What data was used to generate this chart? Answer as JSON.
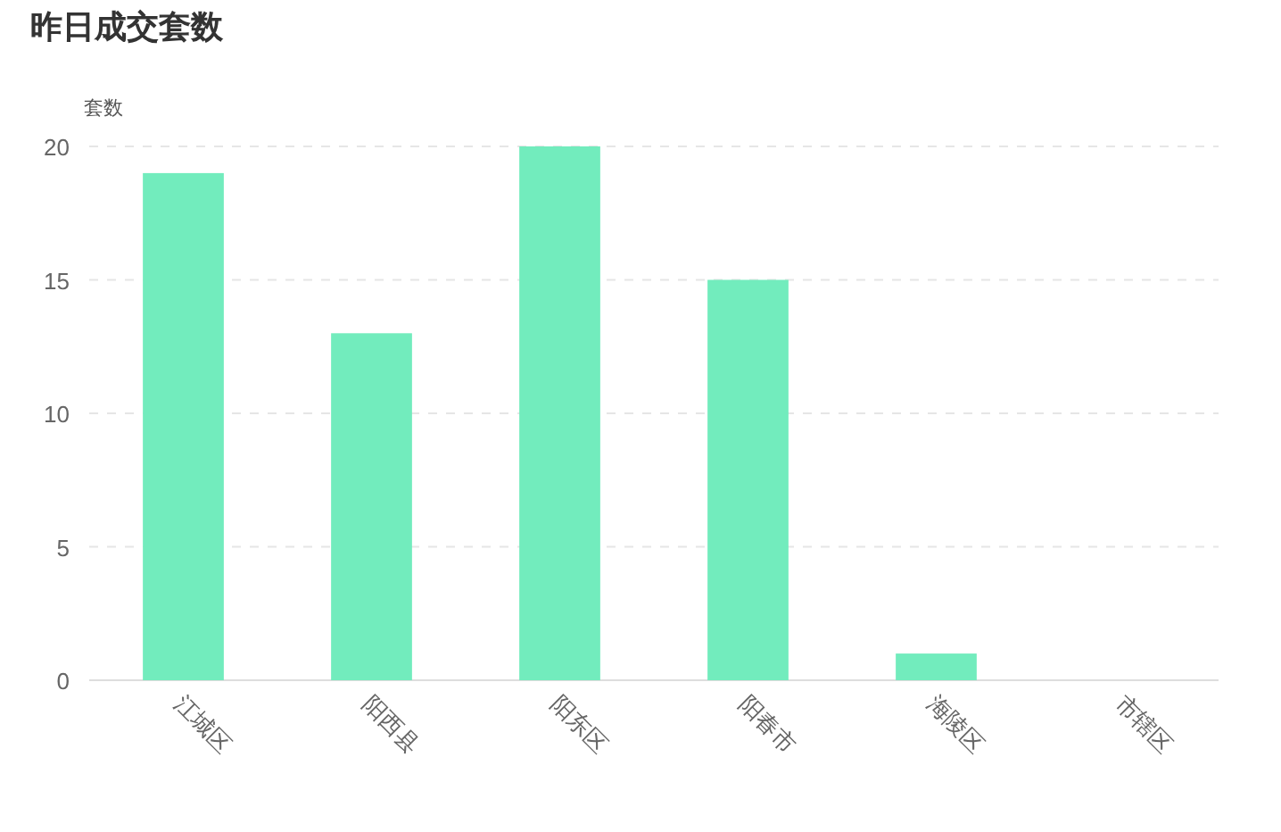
{
  "chart_data": {
    "type": "bar",
    "title": "昨日成交套数",
    "ylabel": "套数",
    "categories": [
      "江城区",
      "阳西县",
      "阳东区",
      "阳春市",
      "海陵区",
      "市辖区"
    ],
    "values": [
      19,
      13,
      20,
      15,
      1,
      0
    ],
    "color": "#72ecbd",
    "ylim": [
      0,
      20
    ],
    "yticks": [
      0,
      5,
      10,
      15,
      20
    ],
    "grid": "y"
  }
}
